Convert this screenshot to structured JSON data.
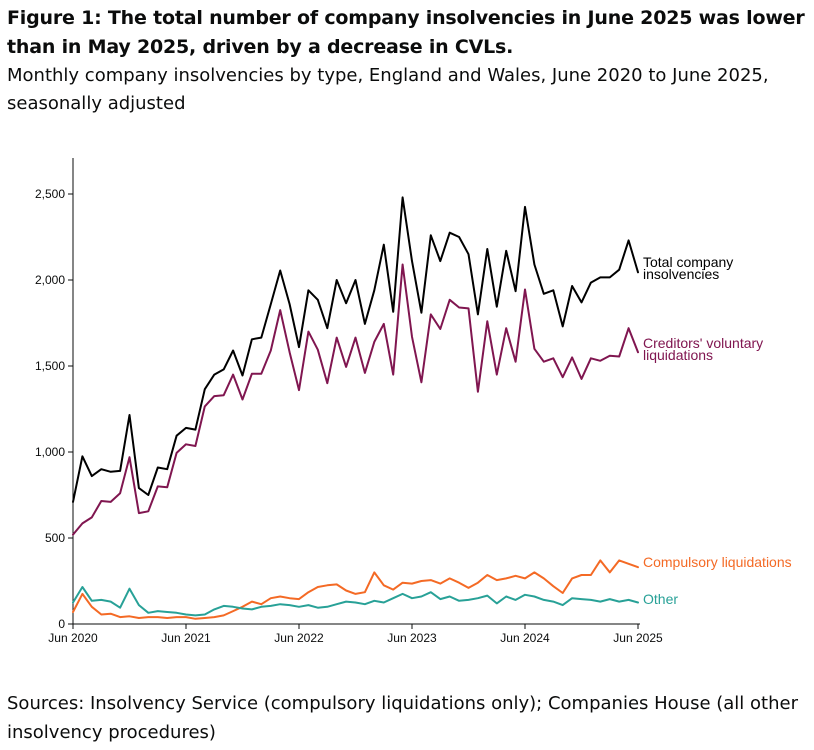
{
  "figure": {
    "title": "Figure 1: The total number of company insolvencies in June 2025 was lower than in May 2025, driven by a decrease in CVLs.",
    "subtitle": "Monthly company insolvencies by type, England and Wales, June 2020 to June 2025, seasonally adjusted",
    "source": "Sources: Insolvency Service (compulsory liquidations only); Companies House (all other insolvency procedures)"
  },
  "chart_data": {
    "type": "line",
    "title": "",
    "xlabel": "",
    "ylabel": "",
    "ylim": [
      0,
      2750
    ],
    "yticks": [
      0,
      500,
      1000,
      1500,
      2000,
      2500
    ],
    "ytick_labels": [
      "0",
      "500",
      "1,000",
      "1,500",
      "2,000",
      "2,500"
    ],
    "xtick_labels": [
      "Jun 2020",
      "Jun 2021",
      "Jun 2022",
      "Jun 2023",
      "Jun 2024",
      "Jun 2025"
    ],
    "xtick_index": [
      0,
      12,
      24,
      36,
      48,
      60
    ],
    "grid": false,
    "legend": "direct labels at line ends (right)",
    "months_start": "Jun 2020",
    "months_end": "Jun 2025",
    "series": [
      {
        "name": "Total company insolvencies",
        "label_lines": [
          "Total company",
          "insolvencies"
        ],
        "color": "#000000",
        "values": [
          710,
          975,
          860,
          900,
          885,
          890,
          1215,
          790,
          750,
          910,
          900,
          1095,
          1140,
          1130,
          1365,
          1450,
          1480,
          1590,
          1445,
          1655,
          1665,
          1860,
          2055,
          1860,
          1610,
          1940,
          1885,
          1720,
          2000,
          1865,
          2000,
          1745,
          1940,
          2205,
          1815,
          2480,
          2110,
          1810,
          2260,
          2110,
          2275,
          2250,
          2150,
          1800,
          2180,
          1845,
          2170,
          1935,
          2425,
          2090,
          1920,
          1940,
          1730,
          1965,
          1870,
          1985,
          2015,
          2015,
          2060,
          2230,
          2045
        ]
      },
      {
        "name": "Creditors' voluntary liquidations",
        "label_lines": [
          "Creditors' voluntary",
          "liquidations"
        ],
        "color": "#801650",
        "values": [
          520,
          585,
          620,
          715,
          710,
          760,
          970,
          645,
          655,
          800,
          795,
          995,
          1045,
          1035,
          1265,
          1325,
          1330,
          1450,
          1305,
          1455,
          1455,
          1590,
          1825,
          1580,
          1360,
          1700,
          1595,
          1400,
          1665,
          1495,
          1665,
          1460,
          1640,
          1745,
          1450,
          2090,
          1670,
          1405,
          1800,
          1715,
          1885,
          1840,
          1835,
          1350,
          1760,
          1450,
          1720,
          1525,
          1945,
          1600,
          1525,
          1545,
          1435,
          1550,
          1425,
          1545,
          1530,
          1560,
          1555,
          1720,
          1580
        ]
      },
      {
        "name": "Compulsory liquidations",
        "label_lines": [
          "Compulsory liquidations"
        ],
        "color": "#f46a25",
        "values": [
          70,
          175,
          100,
          55,
          60,
          40,
          45,
          35,
          40,
          40,
          35,
          40,
          40,
          30,
          35,
          40,
          50,
          75,
          100,
          130,
          115,
          150,
          160,
          150,
          145,
          185,
          215,
          225,
          230,
          195,
          175,
          185,
          300,
          225,
          200,
          240,
          235,
          250,
          255,
          235,
          265,
          240,
          210,
          240,
          285,
          255,
          265,
          280,
          265,
          300,
          265,
          220,
          180,
          265,
          285,
          285,
          370,
          300,
          370,
          350,
          330
        ]
      },
      {
        "name": "Other",
        "label_lines": [
          "Other"
        ],
        "color": "#28a197",
        "values": [
          125,
          215,
          135,
          140,
          130,
          95,
          205,
          110,
          65,
          75,
          70,
          65,
          55,
          50,
          55,
          85,
          105,
          100,
          90,
          85,
          100,
          105,
          115,
          110,
          100,
          110,
          95,
          100,
          115,
          130,
          125,
          115,
          135,
          125,
          150,
          175,
          150,
          160,
          185,
          145,
          160,
          135,
          140,
          150,
          165,
          120,
          160,
          140,
          170,
          160,
          140,
          130,
          110,
          150,
          145,
          140,
          130,
          145,
          130,
          140,
          125
        ]
      }
    ]
  }
}
